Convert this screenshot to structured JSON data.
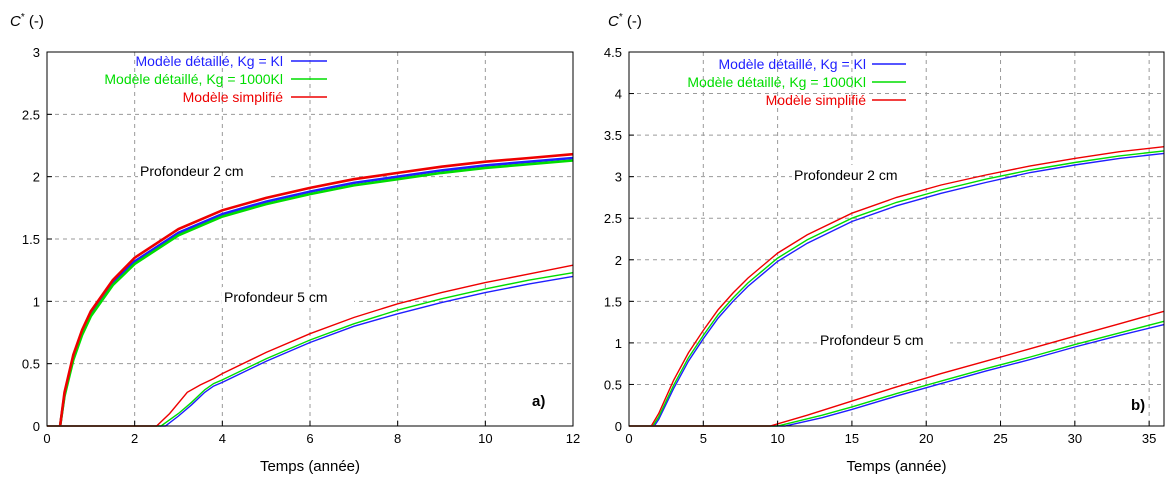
{
  "chart_data": [
    {
      "type": "line",
      "panel_label": "a)",
      "ylabel_main": "C",
      "ylabel_sup": "*",
      "ylabel_rest": " (-)",
      "xlabel": "Temps (année)",
      "xlim": [
        0,
        12
      ],
      "ylim": [
        0,
        3
      ],
      "xticks": [
        0,
        2,
        4,
        6,
        8,
        10,
        12
      ],
      "yticks": [
        0,
        0.5,
        1,
        1.5,
        2,
        2.5,
        3
      ],
      "ytick_labels": [
        "0",
        "0.5",
        "1",
        "1.5",
        "2",
        "2.5",
        "3"
      ],
      "grid": true,
      "legend_position": "top-left",
      "annotations": [
        {
          "text": "Profondeur 2 cm",
          "x": 2.0,
          "y": 2.15
        },
        {
          "text": "Profondeur 5 cm",
          "x": 4.0,
          "y": 1.0
        }
      ],
      "series": [
        {
          "name": "Modèle détaillé, Kg = Kl",
          "color": "#1f1fff",
          "depth": "2 cm",
          "x": [
            0.3,
            0.4,
            0.6,
            0.8,
            1.0,
            1.5,
            2.0,
            3.0,
            4.0,
            5.0,
            6.0,
            7.0,
            8.0,
            9.0,
            10.0,
            11.0,
            12.0
          ],
          "y": [
            0,
            0.25,
            0.55,
            0.75,
            0.9,
            1.15,
            1.32,
            1.55,
            1.7,
            1.8,
            1.88,
            1.95,
            2.0,
            2.05,
            2.09,
            2.12,
            2.15
          ]
        },
        {
          "name": "Modèle détaillé, Kg = 1000Kl",
          "color": "#00dd00",
          "depth": "2 cm",
          "x": [
            0.3,
            0.4,
            0.6,
            0.8,
            1.0,
            1.5,
            2.0,
            3.0,
            4.0,
            5.0,
            6.0,
            7.0,
            8.0,
            9.0,
            10.0,
            11.0,
            12.0
          ],
          "y": [
            0,
            0.24,
            0.53,
            0.73,
            0.88,
            1.13,
            1.3,
            1.53,
            1.68,
            1.78,
            1.86,
            1.93,
            1.98,
            2.03,
            2.07,
            2.1,
            2.13
          ]
        },
        {
          "name": "Modèle simplifié",
          "color": "#ee0000",
          "depth": "2 cm",
          "x": [
            0.3,
            0.4,
            0.6,
            0.8,
            1.0,
            1.5,
            2.0,
            3.0,
            4.0,
            5.0,
            6.0,
            7.0,
            8.0,
            9.0,
            10.0,
            11.0,
            12.0
          ],
          "y": [
            0,
            0.27,
            0.57,
            0.77,
            0.92,
            1.17,
            1.35,
            1.58,
            1.73,
            1.83,
            1.91,
            1.98,
            2.03,
            2.08,
            2.12,
            2.15,
            2.18
          ]
        },
        {
          "name": "Modèle détaillé, Kg = Kl",
          "color": "#1f1fff",
          "depth": "5 cm",
          "x": [
            0,
            2.7,
            3.0,
            3.3,
            3.6,
            3.8,
            4.0,
            5.0,
            6.0,
            7.0,
            8.0,
            9.0,
            10.0,
            11.0,
            12.0
          ],
          "y": [
            0,
            0,
            0.08,
            0.17,
            0.27,
            0.32,
            0.35,
            0.52,
            0.67,
            0.8,
            0.9,
            0.99,
            1.07,
            1.14,
            1.2
          ]
        },
        {
          "name": "Modèle détaillé, Kg = 1000Kl",
          "color": "#00dd00",
          "depth": "5 cm",
          "x": [
            0,
            2.6,
            3.0,
            3.3,
            3.6,
            3.8,
            4.0,
            5.0,
            6.0,
            7.0,
            8.0,
            9.0,
            10.0,
            11.0,
            12.0
          ],
          "y": [
            0,
            0,
            0.1,
            0.19,
            0.29,
            0.34,
            0.37,
            0.54,
            0.69,
            0.82,
            0.93,
            1.02,
            1.1,
            1.17,
            1.23
          ]
        },
        {
          "name": "Modèle simplifié",
          "color": "#ee0000",
          "depth": "5 cm",
          "x": [
            0,
            2.5,
            2.8,
            3.2,
            3.5,
            3.8,
            4.0,
            5.0,
            6.0,
            7.0,
            8.0,
            9.0,
            10.0,
            11.0,
            12.0
          ],
          "y": [
            0,
            0,
            0.1,
            0.27,
            0.33,
            0.38,
            0.42,
            0.59,
            0.74,
            0.87,
            0.98,
            1.07,
            1.15,
            1.22,
            1.29
          ]
        }
      ]
    },
    {
      "type": "line",
      "panel_label": "b)",
      "ylabel_main": "C",
      "ylabel_sup": "*",
      "ylabel_rest": " (-)",
      "xlabel": "Temps (année)",
      "xlim": [
        0,
        36
      ],
      "ylim": [
        0,
        4.5
      ],
      "xticks": [
        0,
        5,
        10,
        15,
        20,
        25,
        30,
        35
      ],
      "yticks": [
        0,
        0.5,
        1,
        1.5,
        2,
        2.5,
        3,
        3.5,
        4,
        4.5
      ],
      "ytick_labels": [
        "0",
        "0.5",
        "1",
        "1.5",
        "2",
        "2.5",
        "3",
        "3.5",
        "4",
        "4.5"
      ],
      "grid": true,
      "legend_position": "top-left",
      "annotations": [
        {
          "text": "Profondeur 2 cm",
          "x": 11.0,
          "y": 3.0
        },
        {
          "text": "Profondeur 5 cm",
          "x": 13.0,
          "y": 1.05
        }
      ],
      "series": [
        {
          "name": "Modèle détaillé, Kg = Kl",
          "color": "#1f1fff",
          "depth": "2 cm",
          "x": [
            1.7,
            2.0,
            3.0,
            4.0,
            5.0,
            6.0,
            7.0,
            8.0,
            10.0,
            12.0,
            15.0,
            18.0,
            21.0,
            24.0,
            27.0,
            30.0,
            33.0,
            36.0
          ],
          "y": [
            0,
            0.08,
            0.45,
            0.78,
            1.05,
            1.3,
            1.5,
            1.68,
            1.98,
            2.2,
            2.46,
            2.65,
            2.8,
            2.93,
            3.05,
            3.14,
            3.22,
            3.28
          ]
        },
        {
          "name": "Modèle détaillé, Kg = 1000Kl",
          "color": "#00dd00",
          "depth": "2 cm",
          "x": [
            1.6,
            2.0,
            3.0,
            4.0,
            5.0,
            6.0,
            7.0,
            8.0,
            10.0,
            12.0,
            15.0,
            18.0,
            21.0,
            24.0,
            27.0,
            30.0,
            33.0,
            36.0
          ],
          "y": [
            0,
            0.11,
            0.49,
            0.82,
            1.09,
            1.34,
            1.54,
            1.72,
            2.02,
            2.24,
            2.5,
            2.69,
            2.84,
            2.97,
            3.08,
            3.17,
            3.25,
            3.31
          ]
        },
        {
          "name": "Modèle simplifié",
          "color": "#ee0000",
          "depth": "2 cm",
          "x": [
            1.5,
            2.0,
            3.0,
            4.0,
            5.0,
            6.0,
            7.0,
            8.0,
            10.0,
            12.0,
            15.0,
            18.0,
            21.0,
            24.0,
            27.0,
            30.0,
            33.0,
            36.0
          ],
          "y": [
            0,
            0.15,
            0.55,
            0.88,
            1.15,
            1.4,
            1.6,
            1.78,
            2.08,
            2.3,
            2.56,
            2.75,
            2.9,
            3.02,
            3.13,
            3.22,
            3.3,
            3.36
          ]
        },
        {
          "name": "Modèle détaillé, Kg = Kl",
          "color": "#1f1fff",
          "depth": "5 cm",
          "x": [
            0,
            10.5,
            13.0,
            15.0,
            18.0,
            21.0,
            24.0,
            27.0,
            30.0,
            33.0,
            36.0
          ],
          "y": [
            0,
            0,
            0.1,
            0.2,
            0.36,
            0.51,
            0.66,
            0.8,
            0.95,
            1.09,
            1.22
          ]
        },
        {
          "name": "Modèle détaillé, Kg = 1000Kl",
          "color": "#00dd00",
          "depth": "5 cm",
          "x": [
            0,
            10.0,
            13.0,
            15.0,
            18.0,
            21.0,
            24.0,
            27.0,
            30.0,
            33.0,
            36.0
          ],
          "y": [
            0,
            0,
            0.13,
            0.23,
            0.39,
            0.54,
            0.69,
            0.83,
            0.98,
            1.12,
            1.26
          ]
        },
        {
          "name": "Modèle simplifié",
          "color": "#ee0000",
          "depth": "5 cm",
          "x": [
            0,
            9.5,
            12.0,
            15.0,
            18.0,
            21.0,
            24.0,
            27.0,
            30.0,
            33.0,
            36.0
          ],
          "y": [
            0,
            0,
            0.13,
            0.3,
            0.47,
            0.63,
            0.78,
            0.93,
            1.08,
            1.23,
            1.38
          ]
        }
      ],
      "legend_order": [
        0,
        1,
        2
      ]
    }
  ]
}
